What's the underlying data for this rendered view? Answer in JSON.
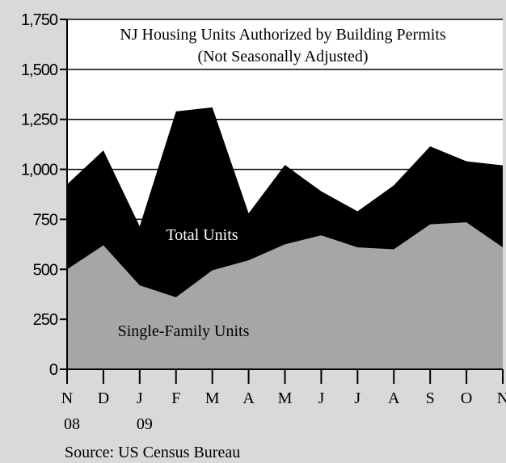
{
  "chart_data": {
    "type": "area",
    "title": "NJ Housing Units Authorized by Building Permits",
    "subtitle": "(Not Seasonally Adjusted)",
    "source": "Source: US Census Bureau",
    "categories": [
      "N",
      "D",
      "J",
      "F",
      "M",
      "A",
      "M",
      "J",
      "J",
      "A",
      "S",
      "O",
      "N"
    ],
    "category_years": [
      "08",
      null,
      "09",
      null,
      null,
      null,
      null,
      null,
      null,
      null,
      null,
      null,
      null
    ],
    "series": [
      {
        "name": "Total Units",
        "color": "#000000",
        "values": [
          925,
          1095,
          715,
          1290,
          1310,
          780,
          1022,
          890,
          790,
          920,
          1115,
          1040,
          1020
        ]
      },
      {
        "name": "Single-Family Units",
        "color": "#a6a6a6",
        "values": [
          500,
          620,
          420,
          360,
          495,
          545,
          625,
          670,
          610,
          600,
          725,
          735,
          610
        ]
      }
    ],
    "ylim": [
      0,
      1750
    ],
    "yticks": [
      0,
      250,
      500,
      750,
      {
        "value": 1000,
        "label": "1,000"
      },
      {
        "value": 1250,
        "label": "1,250"
      },
      {
        "value": 1500,
        "label": "1,500"
      },
      {
        "value": 1750,
        "label": "1,750"
      }
    ],
    "grid": true
  }
}
